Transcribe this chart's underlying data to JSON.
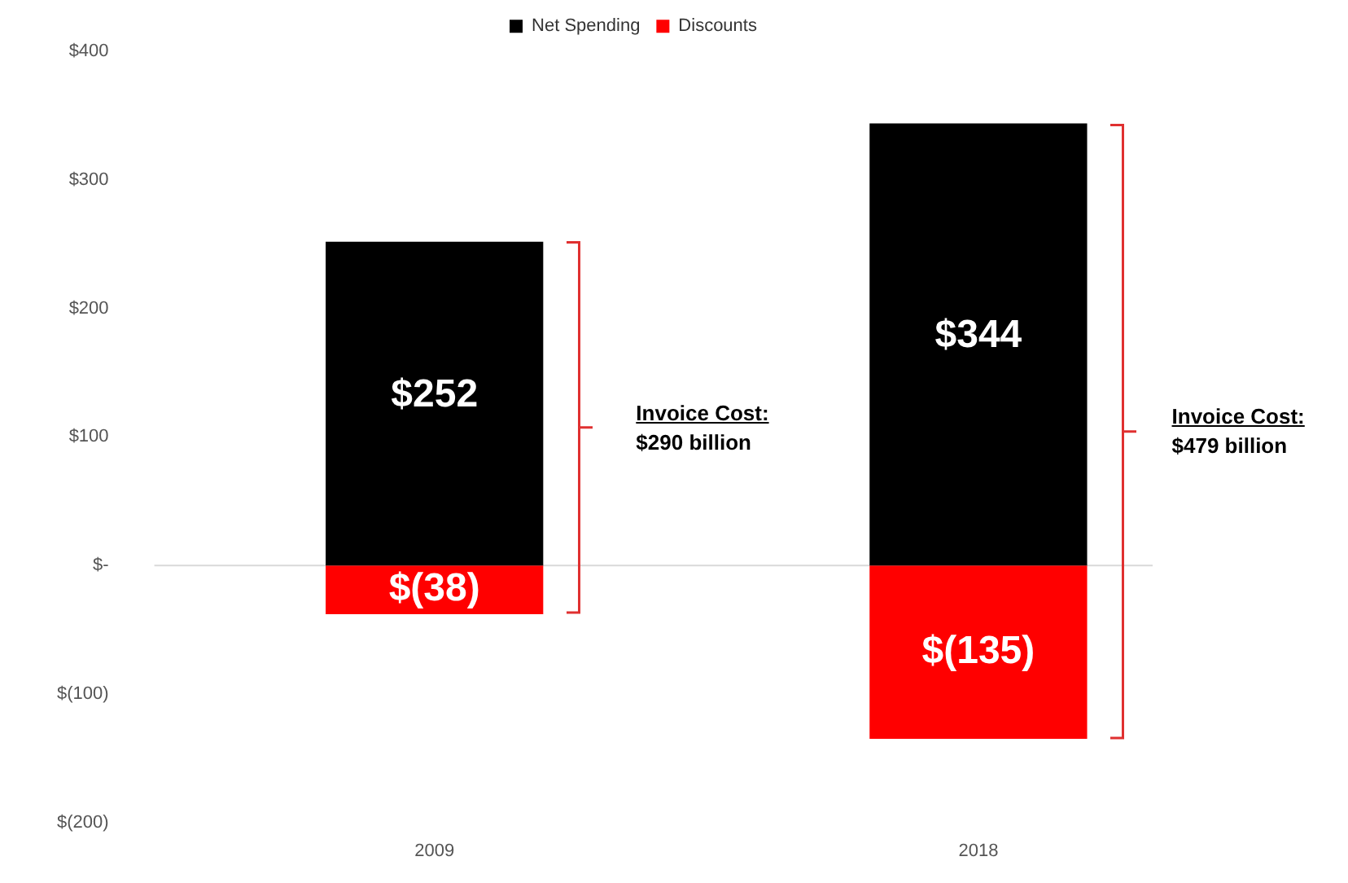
{
  "chart_data": {
    "type": "bar",
    "stacked": true,
    "categories": [
      "2009",
      "2018"
    ],
    "series": [
      {
        "name": "Net Spending",
        "color": "#000000",
        "values": [
          252,
          344
        ],
        "value_labels": [
          "$252",
          "$344"
        ]
      },
      {
        "name": "Discounts",
        "color": "#ff0000",
        "values": [
          -38,
          -135
        ],
        "value_labels": [
          "$(38)",
          "$(135)"
        ]
      }
    ],
    "ylim": [
      -200,
      400
    ],
    "yticks": [
      {
        "value": 400,
        "label": "$400"
      },
      {
        "value": 300,
        "label": "$300"
      },
      {
        "value": 200,
        "label": "$200"
      },
      {
        "value": 100,
        "label": "$100"
      },
      {
        "value": 0,
        "label": "$-"
      },
      {
        "value": -100,
        "label": "$(100)"
      },
      {
        "value": -200,
        "label": "$(200)"
      }
    ],
    "legend": "top",
    "annotations": [
      "Invoice Cost:\n$290 billion",
      "Invoice Cost:\n$479 billion"
    ]
  }
}
